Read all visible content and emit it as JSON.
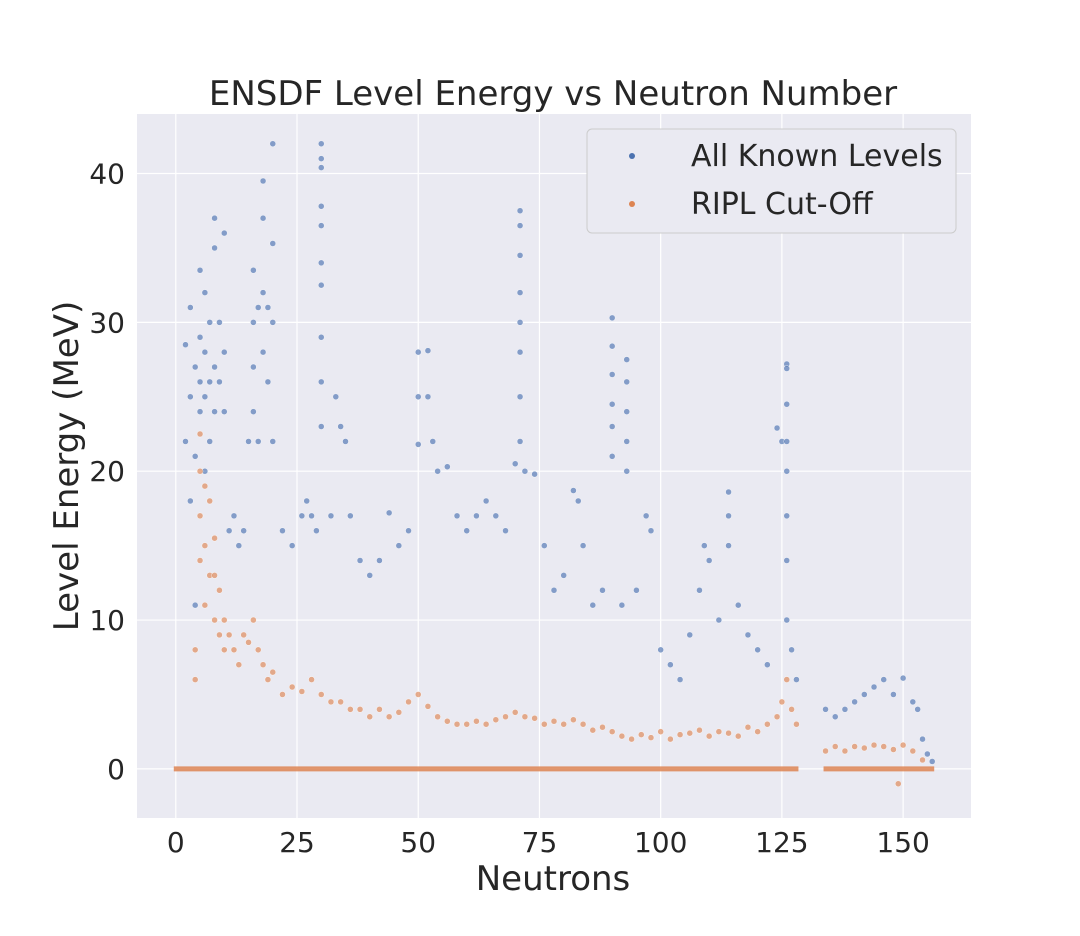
{
  "chart_data": {
    "type": "scatter",
    "title": "ENSDF Level Energy vs Neutron Number",
    "xlabel": "Neutrons",
    "ylabel": "Level Energy (MeV)",
    "xlim": [
      -8,
      164
    ],
    "ylim": [
      -3.3,
      44
    ],
    "xticks": [
      0,
      25,
      50,
      75,
      100,
      125,
      150
    ],
    "yticks": [
      0,
      10,
      20,
      30,
      40
    ],
    "grid": true,
    "legend_position": "top-right",
    "series": [
      {
        "name": "All Known Levels",
        "color": "#4c72b0",
        "points": [
          [
            2,
            28.5
          ],
          [
            2,
            22
          ],
          [
            3,
            31
          ],
          [
            3,
            25
          ],
          [
            3,
            18
          ],
          [
            4,
            27
          ],
          [
            4,
            21
          ],
          [
            4,
            11
          ],
          [
            5,
            33.5
          ],
          [
            5,
            29
          ],
          [
            5,
            26
          ],
          [
            5,
            24
          ],
          [
            6,
            32
          ],
          [
            6,
            28
          ],
          [
            6,
            25
          ],
          [
            6,
            20
          ],
          [
            7,
            30
          ],
          [
            7,
            26
          ],
          [
            7,
            22
          ],
          [
            8,
            37
          ],
          [
            8,
            35
          ],
          [
            8,
            27
          ],
          [
            8,
            24
          ],
          [
            9,
            30
          ],
          [
            9,
            26
          ],
          [
            10,
            36
          ],
          [
            10,
            28
          ],
          [
            10,
            24
          ],
          [
            11,
            16
          ],
          [
            12,
            17
          ],
          [
            13,
            15
          ],
          [
            14,
            16
          ],
          [
            15,
            22
          ],
          [
            16,
            33.5
          ],
          [
            16,
            30
          ],
          [
            16,
            27
          ],
          [
            16,
            24
          ],
          [
            17,
            31
          ],
          [
            17,
            22
          ],
          [
            18,
            39.5
          ],
          [
            18,
            37
          ],
          [
            18,
            32
          ],
          [
            18,
            28
          ],
          [
            19,
            31
          ],
          [
            19,
            26
          ],
          [
            20,
            42
          ],
          [
            20,
            35.3
          ],
          [
            20,
            30
          ],
          [
            20,
            22
          ],
          [
            22,
            16
          ],
          [
            24,
            15
          ],
          [
            26,
            17
          ],
          [
            27,
            18
          ],
          [
            28,
            17
          ],
          [
            29,
            16
          ],
          [
            30,
            42
          ],
          [
            30,
            41
          ],
          [
            30,
            40.4
          ],
          [
            30,
            37.8
          ],
          [
            30,
            36.5
          ],
          [
            30,
            34
          ],
          [
            30,
            32.5
          ],
          [
            30,
            29
          ],
          [
            30,
            26
          ],
          [
            30,
            23
          ],
          [
            32,
            17
          ],
          [
            33,
            25
          ],
          [
            34,
            23
          ],
          [
            35,
            22
          ],
          [
            36,
            17
          ],
          [
            38,
            14
          ],
          [
            40,
            13
          ],
          [
            42,
            14
          ],
          [
            44,
            17.2
          ],
          [
            46,
            15
          ],
          [
            48,
            16
          ],
          [
            50,
            28
          ],
          [
            50,
            25
          ],
          [
            50,
            21.8
          ],
          [
            52,
            28.1
          ],
          [
            52,
            25
          ],
          [
            53,
            22
          ],
          [
            54,
            20
          ],
          [
            56,
            20.3
          ],
          [
            58,
            17
          ],
          [
            60,
            16
          ],
          [
            62,
            17
          ],
          [
            64,
            18
          ],
          [
            66,
            17
          ],
          [
            68,
            16
          ],
          [
            70,
            20.5
          ],
          [
            71,
            37.5
          ],
          [
            71,
            36.5
          ],
          [
            71,
            34.5
          ],
          [
            71,
            32
          ],
          [
            71,
            30
          ],
          [
            71,
            28
          ],
          [
            71,
            25
          ],
          [
            71,
            22
          ],
          [
            72,
            20
          ],
          [
            74,
            19.8
          ],
          [
            76,
            15
          ],
          [
            78,
            12
          ],
          [
            80,
            13
          ],
          [
            82,
            18.7
          ],
          [
            83,
            18
          ],
          [
            84,
            15
          ],
          [
            86,
            11
          ],
          [
            88,
            12
          ],
          [
            90,
            30.3
          ],
          [
            90,
            28.4
          ],
          [
            90,
            26.5
          ],
          [
            90,
            24.5
          ],
          [
            90,
            23
          ],
          [
            90,
            21
          ],
          [
            92,
            11
          ],
          [
            93,
            27.5
          ],
          [
            93,
            26
          ],
          [
            93,
            24
          ],
          [
            93,
            22
          ],
          [
            93,
            20
          ],
          [
            95,
            12
          ],
          [
            97,
            17
          ],
          [
            98,
            16
          ],
          [
            100,
            8
          ],
          [
            102,
            7
          ],
          [
            104,
            6
          ],
          [
            106,
            9
          ],
          [
            108,
            12
          ],
          [
            109,
            15
          ],
          [
            110,
            14
          ],
          [
            112,
            10
          ],
          [
            114,
            18.6
          ],
          [
            114,
            17
          ],
          [
            114,
            15
          ],
          [
            116,
            11
          ],
          [
            118,
            9
          ],
          [
            120,
            8
          ],
          [
            122,
            7
          ],
          [
            124,
            22.9
          ],
          [
            125,
            22
          ],
          [
            126,
            27.2
          ],
          [
            126,
            26.9
          ],
          [
            126,
            24.5
          ],
          [
            126,
            22
          ],
          [
            126,
            20
          ],
          [
            126,
            17
          ],
          [
            126,
            14
          ],
          [
            126,
            10
          ],
          [
            127,
            8
          ],
          [
            128,
            6
          ],
          [
            134,
            4
          ],
          [
            136,
            3.5
          ],
          [
            138,
            4
          ],
          [
            140,
            4.5
          ],
          [
            142,
            5
          ],
          [
            144,
            5.5
          ],
          [
            146,
            6
          ],
          [
            148,
            5
          ],
          [
            150,
            6.1
          ],
          [
            152,
            4.5
          ],
          [
            153,
            4
          ],
          [
            154,
            2
          ],
          [
            155,
            1
          ],
          [
            156,
            0.5
          ]
        ]
      },
      {
        "name": "RIPL Cut-Off",
        "color": "#dd8452",
        "points": [
          [
            4,
            8
          ],
          [
            4,
            6
          ],
          [
            5,
            22.5
          ],
          [
            5,
            20
          ],
          [
            5,
            17
          ],
          [
            5,
            14
          ],
          [
            6,
            19
          ],
          [
            6,
            15
          ],
          [
            6,
            11
          ],
          [
            7,
            18
          ],
          [
            7,
            13
          ],
          [
            8,
            15.5
          ],
          [
            8,
            13
          ],
          [
            8,
            10
          ],
          [
            9,
            12
          ],
          [
            9,
            9
          ],
          [
            10,
            10
          ],
          [
            10,
            8
          ],
          [
            11,
            9
          ],
          [
            12,
            8
          ],
          [
            13,
            7
          ],
          [
            14,
            9
          ],
          [
            15,
            8.5
          ],
          [
            16,
            10
          ],
          [
            17,
            8
          ],
          [
            18,
            7
          ],
          [
            19,
            6
          ],
          [
            20,
            6.5
          ],
          [
            22,
            5
          ],
          [
            24,
            5.5
          ],
          [
            26,
            5.2
          ],
          [
            28,
            6
          ],
          [
            30,
            5
          ],
          [
            32,
            4.5
          ],
          [
            34,
            4.5
          ],
          [
            36,
            4
          ],
          [
            38,
            4
          ],
          [
            40,
            3.5
          ],
          [
            42,
            4
          ],
          [
            44,
            3.5
          ],
          [
            46,
            3.8
          ],
          [
            48,
            4.5
          ],
          [
            50,
            5
          ],
          [
            52,
            4.2
          ],
          [
            54,
            3.5
          ],
          [
            56,
            3.2
          ],
          [
            58,
            3
          ],
          [
            60,
            3
          ],
          [
            62,
            3.2
          ],
          [
            64,
            3
          ],
          [
            66,
            3.3
          ],
          [
            68,
            3.5
          ],
          [
            70,
            3.8
          ],
          [
            72,
            3.5
          ],
          [
            74,
            3.4
          ],
          [
            76,
            3
          ],
          [
            78,
            3.2
          ],
          [
            80,
            3
          ],
          [
            82,
            3.3
          ],
          [
            84,
            3
          ],
          [
            86,
            2.6
          ],
          [
            88,
            2.8
          ],
          [
            90,
            2.5
          ],
          [
            92,
            2.2
          ],
          [
            94,
            2
          ],
          [
            96,
            2.3
          ],
          [
            98,
            2.1
          ],
          [
            100,
            2.5
          ],
          [
            102,
            2
          ],
          [
            104,
            2.3
          ],
          [
            106,
            2.4
          ],
          [
            108,
            2.6
          ],
          [
            110,
            2.2
          ],
          [
            112,
            2.5
          ],
          [
            114,
            2.4
          ],
          [
            116,
            2.2
          ],
          [
            118,
            2.8
          ],
          [
            120,
            2.5
          ],
          [
            122,
            3
          ],
          [
            124,
            3.5
          ],
          [
            125,
            4.5
          ],
          [
            126,
            6
          ],
          [
            127,
            4
          ],
          [
            128,
            3
          ],
          [
            134,
            1.2
          ],
          [
            136,
            1.5
          ],
          [
            138,
            1.2
          ],
          [
            140,
            1.5
          ],
          [
            142,
            1.4
          ],
          [
            144,
            1.6
          ],
          [
            146,
            1.5
          ],
          [
            148,
            1.3
          ],
          [
            149,
            -1
          ],
          [
            150,
            1.6
          ],
          [
            152,
            1.2
          ],
          [
            154,
            0.6
          ]
        ]
      }
    ]
  }
}
